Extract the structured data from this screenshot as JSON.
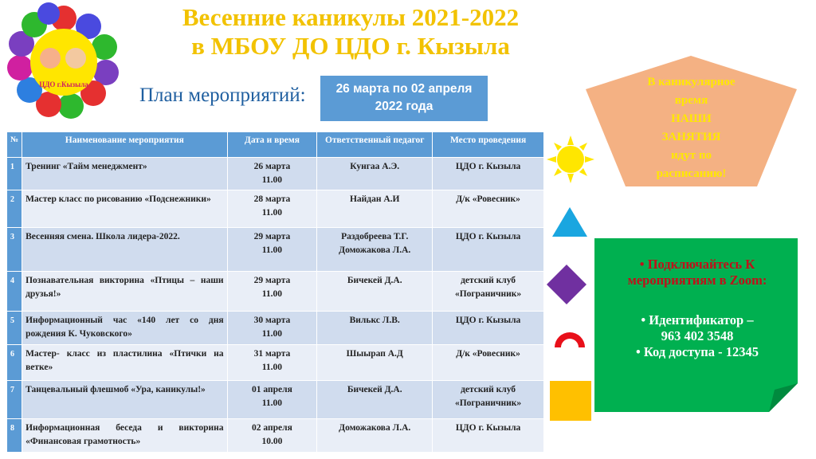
{
  "logo": {
    "text": "ЦДО г.Кызыла"
  },
  "title": {
    "line1": "Весенние каникулы 2021-2022",
    "line2": "в МБОУ ДО ЦДО г. Кызыла"
  },
  "plan_label": "План мероприятий:",
  "date_box": {
    "line1": "26 марта по 02 апреля",
    "line2": "2022 года"
  },
  "table": {
    "headers": [
      "№",
      "Наименование мероприятия",
      "Дата и время",
      "Ответственный педагог",
      "Место проведения"
    ],
    "rows": [
      {
        "num": "1",
        "name": "Тренинг «Тайм менеджмент»",
        "date": "26 марта",
        "time": "11.00",
        "teacher": "Кунгаа А.Э.",
        "teacher2": "",
        "place": "ЦДО г. Кызыла",
        "place2": ""
      },
      {
        "num": "2",
        "name": "Мастер класс по рисованию «Подснежники»",
        "date": "28 марта",
        "time": "11.00",
        "teacher": "Найдан А.И",
        "teacher2": "",
        "place": "Д/к «Ровесник»",
        "place2": ""
      },
      {
        "num": "3",
        "name": "Весенняя смена. Школа лидера-2022.",
        "date": "29 марта",
        "time": "11.00",
        "teacher": "Раздобреева Т.Г.",
        "teacher2": "Доможакова Л.А.",
        "place": "ЦДО г. Кызыла",
        "place2": ""
      },
      {
        "num": "4",
        "name": "Познавательная викторина «Птицы – наши друзья!»",
        "date": "29 марта",
        "time": "11.00",
        "teacher": "Бичекей Д.А.",
        "teacher2": "",
        "place": "детский клуб",
        "place2": "«Пограничник»"
      },
      {
        "num": "5",
        "name": "Информационный час «140 лет со дня рождения К. Чуковского»",
        "date": "30 марта",
        "time": "11.00",
        "teacher": "Вилькс Л.В.",
        "teacher2": "",
        "place": "ЦДО г. Кызыла",
        "place2": ""
      },
      {
        "num": "6",
        "name": "Мастер- класс из пластилина «Птички на ветке»",
        "date": "31 марта",
        "time": "11.00",
        "teacher": "Шыырап А.Д",
        "teacher2": "",
        "place": "Д/к «Ровесник»",
        "place2": ""
      },
      {
        "num": "7",
        "name": "Танцевальный флешмоб «Ура, каникулы!»",
        "date": "01 апреля",
        "time": "11.00",
        "teacher": "Бичекей Д.А.",
        "teacher2": "",
        "place": "детский клуб",
        "place2": "«Пограничник»"
      },
      {
        "num": "8",
        "name": "Информационная беседа и викторина «Финансовая грамотность»",
        "date": "02 апреля",
        "time": "10.00",
        "teacher": "Доможакова Л.А.",
        "teacher2": "",
        "place": "ЦДО г. Кызыла",
        "place2": ""
      }
    ]
  },
  "pentagon": {
    "lines": [
      "В каникулярное",
      "время",
      "НАШИ",
      "ЗАНЯТИЯ",
      "идут по",
      "расписанию!"
    ]
  },
  "zoom_note": {
    "bullet1": "Подключайтесь К мероприятиям в Zoom:",
    "bullet2": "Идентификатор –",
    "id": "963 402 3548",
    "bullet3": "Код доступа - 12345"
  },
  "colors": {
    "title": "#f2c200",
    "header": "#5b9bd5",
    "pentagon": "#f4b183",
    "green": "#00b050",
    "red_text": "#c0101a"
  }
}
